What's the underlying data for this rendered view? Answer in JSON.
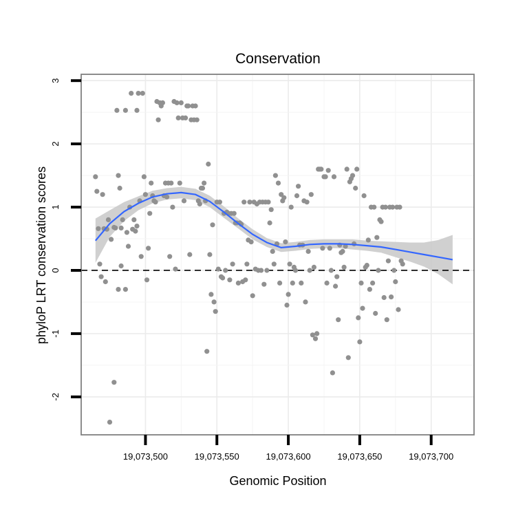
{
  "chart_data": {
    "type": "scatter",
    "title": "Conservation",
    "xlabel": "Genomic Position",
    "ylabel": "phyloP LRT conservation scores",
    "xlim": [
      19073455,
      19073730
    ],
    "ylim": [
      -2.6,
      3.1
    ],
    "xticks": [
      19073500,
      19073550,
      19073600,
      19073650,
      19073700
    ],
    "xtick_labels": [
      "19,073,500",
      "19,073,550",
      "19,073,600",
      "19,073,650",
      "19,073,700"
    ],
    "yticks": [
      -2,
      -1,
      0,
      1,
      2,
      3
    ],
    "ytick_labels": [
      "-2",
      "-1",
      "0",
      "1",
      "2",
      "3"
    ],
    "grid": true,
    "reference_line": {
      "y": 0,
      "style": "dashed"
    },
    "colors": {
      "points": "#909090",
      "smooth": "#3366FF",
      "band": "#C8C8C8",
      "grid": "#EBEBEB",
      "border": "#7F7F7F"
    },
    "points": [
      [
        19073465,
        1.48
      ],
      [
        19073466,
        1.25
      ],
      [
        19073467,
        0.66
      ],
      [
        19073468,
        0.1
      ],
      [
        19073469,
        -0.1
      ],
      [
        19073470,
        1.2
      ],
      [
        19073471,
        0.66
      ],
      [
        19073472,
        -0.18
      ],
      [
        19073473,
        0.65
      ],
      [
        19073474,
        0.8
      ],
      [
        19073475,
        -2.4
      ],
      [
        19073476,
        0.49
      ],
      [
        19073478,
        -1.77
      ],
      [
        19073478,
        0.68
      ],
      [
        19073479,
        0.67
      ],
      [
        19073480,
        2.53
      ],
      [
        19073481,
        -0.3
      ],
      [
        19073481,
        1.5
      ],
      [
        19073482,
        1.3
      ],
      [
        19073483,
        0.07
      ],
      [
        19073483,
        0.67
      ],
      [
        19073484,
        0.8
      ],
      [
        19073486,
        -0.3
      ],
      [
        19073486,
        2.53
      ],
      [
        19073487,
        0.6
      ],
      [
        19073488,
        0.38
      ],
      [
        19073489,
        1.0
      ],
      [
        19073490,
        2.8
      ],
      [
        19073491,
        0.65
      ],
      [
        19073492,
        0.8
      ],
      [
        19073493,
        0.62
      ],
      [
        19073494,
        2.53
      ],
      [
        19073494,
        0.7
      ],
      [
        19073495,
        2.8
      ],
      [
        19073496,
        1.1
      ],
      [
        19073497,
        0.22
      ],
      [
        19073498,
        2.8
      ],
      [
        19073499,
        1.48
      ],
      [
        19073500,
        1.2
      ],
      [
        19073501,
        -0.15
      ],
      [
        19073502,
        0.35
      ],
      [
        19073503,
        0.9
      ],
      [
        19073504,
        1.38
      ],
      [
        19073505,
        1.18
      ],
      [
        19073506,
        1.1
      ],
      [
        19073507,
        1.08
      ],
      [
        19073508,
        2.67
      ],
      [
        19073509,
        2.38
      ],
      [
        19073510,
        2.65
      ],
      [
        19073511,
        2.6
      ],
      [
        19073512,
        2.65
      ],
      [
        19073513,
        1.18
      ],
      [
        19073514,
        1.38
      ],
      [
        19073515,
        1.16
      ],
      [
        19073516,
        1.38
      ],
      [
        19073517,
        0.22
      ],
      [
        19073518,
        1.38
      ],
      [
        19073519,
        1.0
      ],
      [
        19073520,
        2.67
      ],
      [
        19073521,
        0.02
      ],
      [
        19073522,
        2.65
      ],
      [
        19073523,
        2.41
      ],
      [
        19073524,
        1.38
      ],
      [
        19073525,
        2.65
      ],
      [
        19073526,
        2.41
      ],
      [
        19073527,
        1.1
      ],
      [
        19073528,
        2.41
      ],
      [
        19073529,
        2.6
      ],
      [
        19073530,
        2.6
      ],
      [
        19073531,
        0.25
      ],
      [
        19073532,
        2.38
      ],
      [
        19073533,
        2.6
      ],
      [
        19073534,
        2.38
      ],
      [
        19073535,
        2.6
      ],
      [
        19073536,
        2.38
      ],
      [
        19073537,
        1.1
      ],
      [
        19073538,
        1.05
      ],
      [
        19073539,
        1.3
      ],
      [
        19073540,
        1.3
      ],
      [
        19073541,
        1.38
      ],
      [
        19073542,
        1.1
      ],
      [
        19073543,
        -1.28
      ],
      [
        19073544,
        1.68
      ],
      [
        19073545,
        0.25
      ],
      [
        19073546,
        -0.38
      ],
      [
        19073547,
        0.72
      ],
      [
        19073548,
        -0.5
      ],
      [
        19073549,
        -0.65
      ],
      [
        19073550,
        1.08
      ],
      [
        19073551,
        0.02
      ],
      [
        19073552,
        1.08
      ],
      [
        19073553,
        -0.1
      ],
      [
        19073554,
        -0.12
      ],
      [
        19073555,
        0.9
      ],
      [
        19073556,
        0.0
      ],
      [
        19073557,
        0.92
      ],
      [
        19073558,
        0.9
      ],
      [
        19073559,
        -0.15
      ],
      [
        19073560,
        0.9
      ],
      [
        19073561,
        0.1
      ],
      [
        19073562,
        0.9
      ],
      [
        19073563,
        0.75
      ],
      [
        19073564,
        0.75
      ],
      [
        19073565,
        -0.2
      ],
      [
        19073566,
        0.75
      ],
      [
        19073567,
        0.73
      ],
      [
        19073568,
        -0.18
      ],
      [
        19073569,
        1.08
      ],
      [
        19073570,
        -0.15
      ],
      [
        19073571,
        0.1
      ],
      [
        19073572,
        0.48
      ],
      [
        19073573,
        1.08
      ],
      [
        19073574,
        0.45
      ],
      [
        19073575,
        -0.4
      ],
      [
        19073576,
        1.08
      ],
      [
        19073577,
        0.02
      ],
      [
        19073578,
        1.05
      ],
      [
        19073579,
        0.0
      ],
      [
        19073580,
        1.08
      ],
      [
        19073581,
        0.0
      ],
      [
        19073582,
        1.08
      ],
      [
        19073583,
        -0.22
      ],
      [
        19073584,
        1.08
      ],
      [
        19073585,
        0.0
      ],
      [
        19073586,
        1.08
      ],
      [
        19073587,
        0.75
      ],
      [
        19073588,
        0.96
      ],
      [
        19073589,
        0.3
      ],
      [
        19073590,
        0.1
      ],
      [
        19073591,
        1.5
      ],
      [
        19073592,
        0.42
      ],
      [
        19073593,
        1.38
      ],
      [
        19073594,
        -0.2
      ],
      [
        19073595,
        1.2
      ],
      [
        19073596,
        1.1
      ],
      [
        19073597,
        1.15
      ],
      [
        19073598,
        0.45
      ],
      [
        19073599,
        -0.55
      ],
      [
        19073600,
        -0.38
      ],
      [
        19073601,
        0.1
      ],
      [
        19073602,
        1.0
      ],
      [
        19073603,
        -0.2
      ],
      [
        19073604,
        0.05
      ],
      [
        19073605,
        0.0
      ],
      [
        19073606,
        1.18
      ],
      [
        19073607,
        1.33
      ],
      [
        19073608,
        0.4
      ],
      [
        19073609,
        -0.2
      ],
      [
        19073610,
        0.4
      ],
      [
        19073611,
        1.1
      ],
      [
        19073612,
        -0.5
      ],
      [
        19073613,
        1.08
      ],
      [
        19073614,
        0.3
      ],
      [
        19073615,
        0.0
      ],
      [
        19073616,
        1.2
      ],
      [
        19073617,
        -1.02
      ],
      [
        19073618,
        0.05
      ],
      [
        19073619,
        -1.08
      ],
      [
        19073620,
        -1.0
      ],
      [
        19073621,
        1.6
      ],
      [
        19073622,
        1.6
      ],
      [
        19073623,
        1.6
      ],
      [
        19073624,
        0.35
      ],
      [
        19073625,
        1.48
      ],
      [
        19073626,
        1.48
      ],
      [
        19073627,
        -0.2
      ],
      [
        19073628,
        1.58
      ],
      [
        19073629,
        0.35
      ],
      [
        19073630,
        0.0
      ],
      [
        19073631,
        -1.62
      ],
      [
        19073632,
        1.48
      ],
      [
        19073633,
        -0.25
      ],
      [
        19073634,
        -0.1
      ],
      [
        19073635,
        -0.78
      ],
      [
        19073636,
        0.4
      ],
      [
        19073637,
        0.28
      ],
      [
        19073638,
        0.3
      ],
      [
        19073639,
        0.05
      ],
      [
        19073640,
        0.38
      ],
      [
        19073641,
        1.6
      ],
      [
        19073642,
        -1.38
      ],
      [
        19073643,
        1.4
      ],
      [
        19073644,
        1.45
      ],
      [
        19073645,
        1.5
      ],
      [
        19073646,
        0.42
      ],
      [
        19073647,
        1.3
      ],
      [
        19073648,
        1.6
      ],
      [
        19073649,
        -0.75
      ],
      [
        19073650,
        -1.13
      ],
      [
        19073651,
        -0.2
      ],
      [
        19073652,
        -0.6
      ],
      [
        19073653,
        1.18
      ],
      [
        19073654,
        0.05
      ],
      [
        19073655,
        0.08
      ],
      [
        19073656,
        0.48
      ],
      [
        19073657,
        -0.3
      ],
      [
        19073658,
        1.0
      ],
      [
        19073659,
        -0.2
      ],
      [
        19073660,
        1.0
      ],
      [
        19073661,
        -0.68
      ],
      [
        19073662,
        0.52
      ],
      [
        19073663,
        0.0
      ],
      [
        19073664,
        0.8
      ],
      [
        19073665,
        0.77
      ],
      [
        19073666,
        1.0
      ],
      [
        19073667,
        -0.43
      ],
      [
        19073668,
        1.0
      ],
      [
        19073669,
        -0.78
      ],
      [
        19073670,
        0.15
      ],
      [
        19073671,
        1.0
      ],
      [
        19073672,
        -0.42
      ],
      [
        19073673,
        1.0
      ],
      [
        19073674,
        0.0
      ],
      [
        19073675,
        -0.18
      ],
      [
        19073676,
        1.0
      ],
      [
        19073677,
        -0.62
      ],
      [
        19073678,
        1.0
      ],
      [
        19073679,
        0.15
      ],
      [
        19073680,
        0.1
      ]
    ],
    "smooth": {
      "x": [
        19073465,
        19073475,
        19073485,
        19073495,
        19073505,
        19073515,
        19073525,
        19073535,
        19073545,
        19073555,
        19073565,
        19073575,
        19073585,
        19073595,
        19073605,
        19073615,
        19073625,
        19073635,
        19073645,
        19073655,
        19073665,
        19073675,
        19073685,
        19073695,
        19073705,
        19073715
      ],
      "y": [
        0.47,
        0.74,
        0.93,
        1.06,
        1.16,
        1.21,
        1.23,
        1.2,
        1.09,
        0.92,
        0.74,
        0.57,
        0.44,
        0.36,
        0.38,
        0.41,
        0.42,
        0.42,
        0.41,
        0.39,
        0.37,
        0.33,
        0.29,
        0.25,
        0.21,
        0.17
      ],
      "lower": [
        0.12,
        0.53,
        0.78,
        0.95,
        1.06,
        1.12,
        1.14,
        1.11,
        1.0,
        0.83,
        0.66,
        0.49,
        0.37,
        0.29,
        0.31,
        0.34,
        0.35,
        0.35,
        0.33,
        0.31,
        0.28,
        0.21,
        0.14,
        0.06,
        -0.06,
        -0.22
      ],
      "upper": [
        0.82,
        0.95,
        1.08,
        1.17,
        1.26,
        1.3,
        1.32,
        1.29,
        1.18,
        1.01,
        0.82,
        0.65,
        0.51,
        0.43,
        0.45,
        0.48,
        0.49,
        0.49,
        0.49,
        0.47,
        0.46,
        0.45,
        0.44,
        0.44,
        0.48,
        0.56
      ]
    }
  }
}
